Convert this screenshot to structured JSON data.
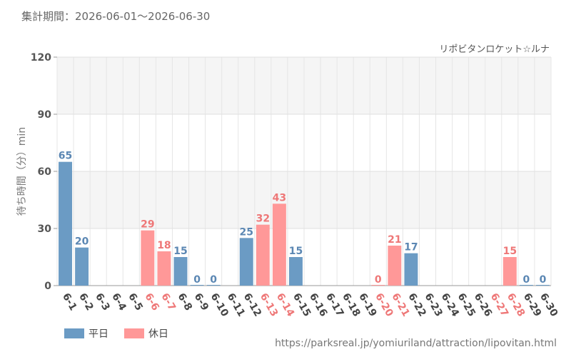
{
  "header": {
    "period_label": "集計期間：2026-06-01～2026-06-30"
  },
  "legend": {
    "weekday_label": "平日",
    "holiday_label": "休日"
  },
  "footer": {
    "source_url": "https://parksreal.jp/yomiuriland/attraction/lipovitan.html"
  },
  "colors": {
    "weekday": "#6b9bc4",
    "holiday": "#ff9898",
    "weekday_text": "#5b87b3",
    "holiday_text": "#ee7777",
    "band": "#f5f5f5"
  },
  "chart_data": {
    "type": "bar",
    "title": "リポビタンロケット☆ルナ",
    "ylabel": "待ち時間（分）min",
    "xlabel": "",
    "ylim": [
      0,
      120
    ],
    "yticks": [
      0,
      30,
      60,
      90,
      120
    ],
    "grid": true,
    "legend_position": "bottom-left",
    "categories": [
      "6-1",
      "6-2",
      "6-3",
      "6-4",
      "6-5",
      "6-6",
      "6-7",
      "6-8",
      "6-9",
      "6-10",
      "6-11",
      "6-12",
      "6-13",
      "6-14",
      "6-15",
      "6-16",
      "6-17",
      "6-18",
      "6-19",
      "6-20",
      "6-21",
      "6-22",
      "6-23",
      "6-24",
      "6-25",
      "6-26",
      "6-27",
      "6-28",
      "6-29",
      "6-30"
    ],
    "day_type": [
      "weekday",
      "weekday",
      "weekday",
      "weekday",
      "weekday",
      "holiday",
      "holiday",
      "weekday",
      "weekday",
      "weekday",
      "weekday",
      "weekday",
      "holiday",
      "holiday",
      "weekday",
      "weekday",
      "weekday",
      "weekday",
      "weekday",
      "holiday",
      "holiday",
      "weekday",
      "weekday",
      "weekday",
      "weekday",
      "weekday",
      "holiday",
      "holiday",
      "weekday",
      "weekday"
    ],
    "values": [
      65,
      20,
      null,
      null,
      null,
      29,
      18,
      15,
      0,
      0,
      null,
      25,
      32,
      43,
      15,
      null,
      null,
      null,
      null,
      0,
      21,
      17,
      null,
      null,
      null,
      null,
      null,
      15,
      0,
      0
    ],
    "series": [
      {
        "name": "平日"
      },
      {
        "name": "休日"
      }
    ]
  }
}
